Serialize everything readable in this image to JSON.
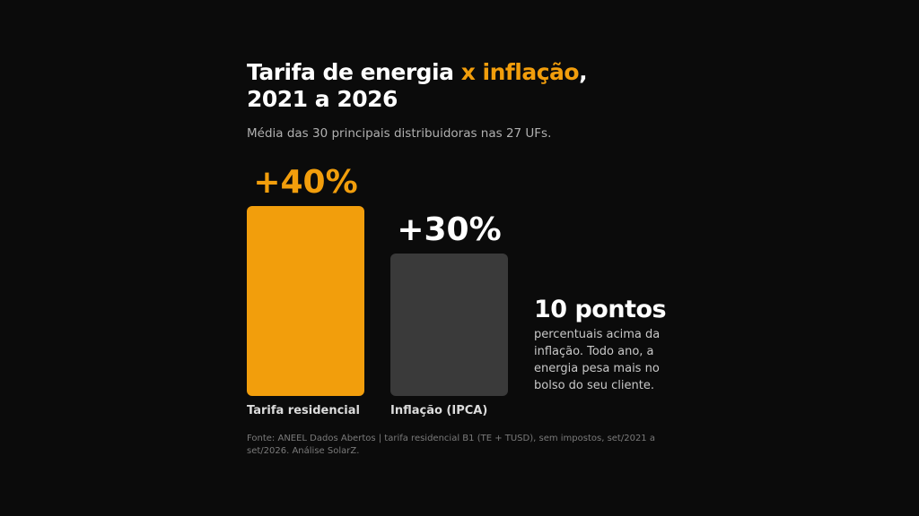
{
  "chart_data": {
    "type": "bar",
    "title": [
      "Tarifa de energia ",
      "x inflação",
      ", 2021 a 2026"
    ],
    "subtitle": "Média das 30 principais distribuidoras nas 27 UFs.",
    "categories": [
      "Tarifa residencial",
      "Inflação (IPCA)"
    ],
    "values": [
      40,
      30
    ],
    "value_labels": [
      "+40%",
      "+30%"
    ],
    "colors": [
      "#f29e0c",
      "#3a3a3a"
    ],
    "value_label_colors": [
      "#f29e0c",
      "#ffffff"
    ],
    "annotation": {
      "headline": "10 pontos",
      "text": "percentuais acima da inflação. Todo ano, a energia pesa mais no bolso do seu cliente."
    },
    "source": "Fonte: ANEEL Dados Abertos | tarifa residencial B1 (TE + TUSD), sem impostos, set/2021 a set/2026. Análise SolarZ."
  }
}
